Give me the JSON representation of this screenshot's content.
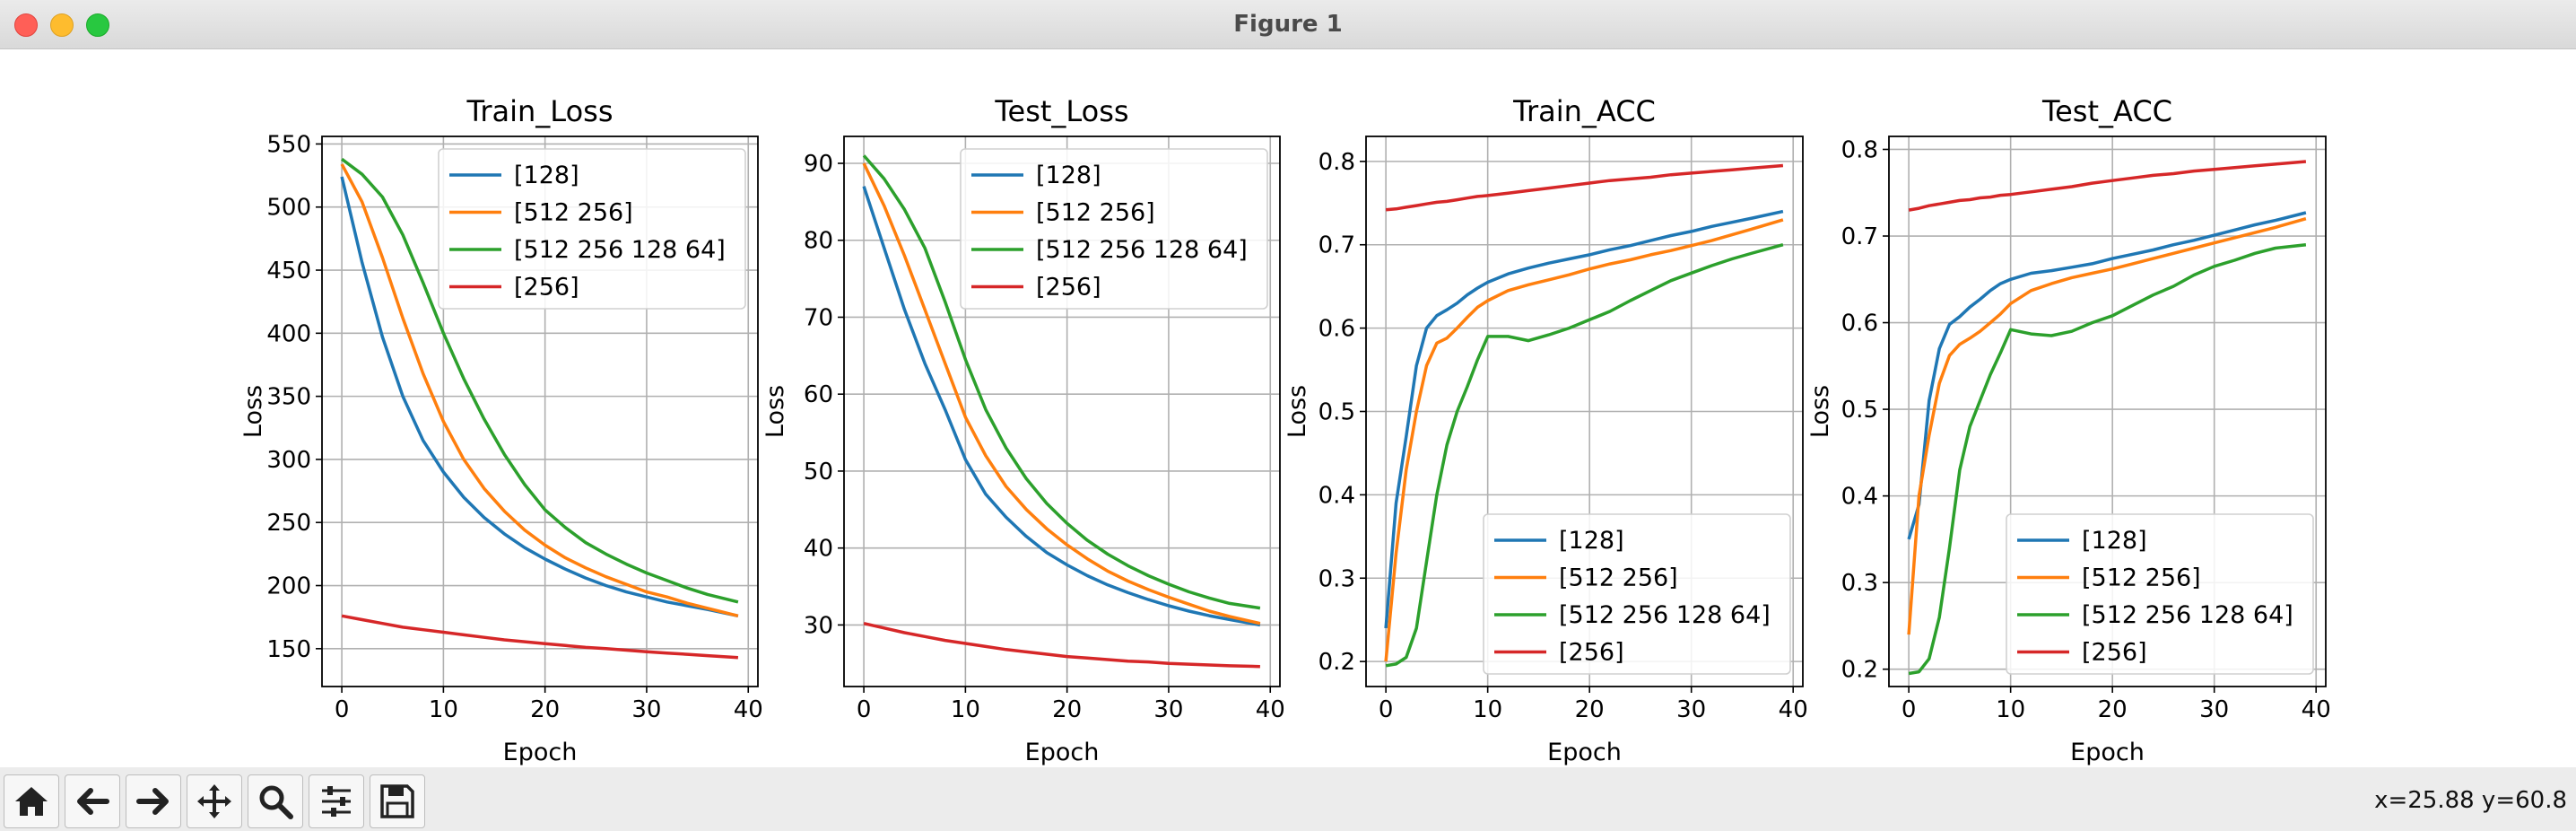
{
  "window": {
    "title": "Figure 1"
  },
  "toolbar": {
    "buttons": [
      {
        "name": "home-button",
        "icon": "home-icon"
      },
      {
        "name": "back-button",
        "icon": "arrow-left-icon"
      },
      {
        "name": "forward-button",
        "icon": "arrow-right-icon"
      },
      {
        "name": "pan-button",
        "icon": "move-icon"
      },
      {
        "name": "zoom-button",
        "icon": "magnifier-icon"
      },
      {
        "name": "configure-subplots-button",
        "icon": "sliders-icon"
      },
      {
        "name": "save-button",
        "icon": "floppy-disk-icon"
      }
    ],
    "coords": "x=25.88 y=60.8"
  },
  "colors": {
    "s128": "#1f77b4",
    "s512_256": "#ff7f0e",
    "s512_256_128_64": "#2ca02c",
    "s256": "#d62728"
  },
  "chart_data": [
    {
      "type": "line",
      "title": "Train_Loss",
      "xlabel": "Epoch",
      "ylabel": "Loss",
      "xlim": [
        -1.95,
        40.95
      ],
      "ylim": [
        120,
        556
      ],
      "xticks": [
        0,
        10,
        20,
        30,
        40
      ],
      "yticks": [
        150,
        200,
        250,
        300,
        350,
        400,
        450,
        500,
        550
      ],
      "grid": true,
      "legend": "upper right",
      "x": [
        0,
        2,
        4,
        6,
        8,
        10,
        12,
        14,
        16,
        18,
        20,
        22,
        24,
        26,
        28,
        30,
        32,
        34,
        36,
        39
      ],
      "series": [
        {
          "name": "[128]",
          "values": [
            524,
            456,
            397,
            350,
            315,
            290,
            270,
            254,
            241,
            230,
            221,
            213,
            206,
            200,
            195,
            191,
            187,
            184,
            181,
            176
          ]
        },
        {
          "name": "[512 256]",
          "values": [
            534,
            504,
            460,
            412,
            368,
            330,
            300,
            277,
            259,
            244,
            232,
            222,
            214,
            207,
            201,
            195,
            191,
            186,
            182,
            176
          ]
        },
        {
          "name": "[512 256 128 64]",
          "values": [
            538,
            526,
            508,
            478,
            440,
            400,
            364,
            332,
            304,
            280,
            260,
            246,
            234,
            225,
            217,
            210,
            204,
            198,
            193,
            187
          ]
        },
        {
          "name": "[256]",
          "values": [
            176,
            173,
            170,
            167,
            165,
            163,
            161,
            159,
            157,
            155.5,
            154,
            152.5,
            151,
            150,
            148.8,
            147.6,
            146.5,
            145.5,
            144.5,
            143
          ]
        }
      ]
    },
    {
      "type": "line",
      "title": "Test_Loss",
      "xlabel": "Epoch",
      "ylabel": "Loss",
      "xlim": [
        -1.95,
        40.95
      ],
      "ylim": [
        22,
        93.5
      ],
      "xticks": [
        0,
        10,
        20,
        30,
        40
      ],
      "yticks": [
        30,
        40,
        50,
        60,
        70,
        80,
        90
      ],
      "grid": true,
      "legend": "upper right",
      "x": [
        0,
        2,
        4,
        6,
        8,
        10,
        12,
        14,
        16,
        18,
        20,
        22,
        24,
        26,
        28,
        30,
        32,
        34,
        36,
        39
      ],
      "series": [
        {
          "name": "[128]",
          "values": [
            87,
            79,
            71,
            64,
            58,
            51.5,
            47,
            44,
            41.5,
            39.4,
            37.8,
            36.4,
            35.2,
            34.2,
            33.3,
            32.5,
            31.8,
            31.2,
            30.7,
            30
          ]
        },
        {
          "name": "[512 256]",
          "values": [
            90,
            84.5,
            78,
            71,
            64,
            57,
            52,
            48,
            45,
            42.5,
            40.4,
            38.6,
            37,
            35.7,
            34.6,
            33.6,
            32.7,
            31.8,
            31.1,
            30.2
          ]
        },
        {
          "name": "[512 256 128 64]",
          "values": [
            91,
            88,
            84,
            79,
            72,
            64.5,
            58,
            53,
            49,
            45.8,
            43.2,
            41,
            39.2,
            37.7,
            36.4,
            35.3,
            34.3,
            33.5,
            32.8,
            32.2
          ]
        },
        {
          "name": "[256]",
          "values": [
            30.2,
            29.6,
            29,
            28.5,
            28,
            27.6,
            27.2,
            26.8,
            26.5,
            26.2,
            25.9,
            25.7,
            25.5,
            25.3,
            25.2,
            25,
            24.9,
            24.8,
            24.7,
            24.6
          ]
        }
      ]
    },
    {
      "type": "line",
      "title": "Train_ACC",
      "xlabel": "Epoch",
      "ylabel": "Loss",
      "xlim": [
        -1.95,
        40.95
      ],
      "ylim": [
        0.17,
        0.83
      ],
      "xticks": [
        0,
        10,
        20,
        30,
        40
      ],
      "yticks": [
        0.2,
        0.3,
        0.4,
        0.5,
        0.6,
        0.7,
        0.8
      ],
      "grid": true,
      "legend": "lower right",
      "x": [
        0,
        1,
        2,
        3,
        4,
        5,
        6,
        7,
        8,
        9,
        10,
        12,
        14,
        16,
        18,
        20,
        22,
        24,
        26,
        28,
        30,
        32,
        34,
        36,
        39
      ],
      "series": [
        {
          "name": "[128]",
          "values": [
            0.24,
            0.39,
            0.47,
            0.555,
            0.6,
            0.615,
            0.622,
            0.63,
            0.64,
            0.648,
            0.655,
            0.665,
            0.672,
            0.678,
            0.683,
            0.688,
            0.694,
            0.699,
            0.705,
            0.711,
            0.716,
            0.722,
            0.727,
            0.732,
            0.74
          ]
        },
        {
          "name": "[512 256]",
          "values": [
            0.2,
            0.33,
            0.43,
            0.5,
            0.555,
            0.582,
            0.588,
            0.6,
            0.613,
            0.625,
            0.633,
            0.645,
            0.652,
            0.658,
            0.664,
            0.671,
            0.677,
            0.682,
            0.688,
            0.693,
            0.699,
            0.705,
            0.712,
            0.719,
            0.73
          ]
        },
        {
          "name": "[512 256 128 64]",
          "values": [
            0.195,
            0.197,
            0.205,
            0.24,
            0.32,
            0.4,
            0.46,
            0.5,
            0.53,
            0.562,
            0.59,
            0.59,
            0.585,
            0.592,
            0.6,
            0.61,
            0.62,
            0.633,
            0.645,
            0.657,
            0.666,
            0.675,
            0.683,
            0.69,
            0.7
          ]
        },
        {
          "name": "[256]",
          "values": [
            0.742,
            0.743,
            0.745,
            0.747,
            0.749,
            0.751,
            0.752,
            0.754,
            0.756,
            0.758,
            0.759,
            0.762,
            0.765,
            0.768,
            0.771,
            0.774,
            0.777,
            0.779,
            0.781,
            0.784,
            0.786,
            0.788,
            0.79,
            0.792,
            0.795
          ]
        }
      ]
    },
    {
      "type": "line",
      "title": "Test_ACC",
      "xlabel": "Epoch",
      "ylabel": "Loss",
      "xlim": [
        -1.95,
        40.95
      ],
      "ylim": [
        0.18,
        0.815
      ],
      "xticks": [
        0,
        10,
        20,
        30,
        40
      ],
      "yticks": [
        0.2,
        0.3,
        0.4,
        0.5,
        0.6,
        0.7,
        0.8
      ],
      "grid": true,
      "legend": "lower right",
      "x": [
        0,
        1,
        2,
        3,
        4,
        5,
        6,
        7,
        8,
        9,
        10,
        12,
        14,
        16,
        18,
        20,
        22,
        24,
        26,
        28,
        30,
        32,
        34,
        36,
        39
      ],
      "series": [
        {
          "name": "[128]",
          "values": [
            0.35,
            0.39,
            0.51,
            0.57,
            0.598,
            0.607,
            0.618,
            0.627,
            0.637,
            0.645,
            0.65,
            0.657,
            0.66,
            0.664,
            0.668,
            0.674,
            0.679,
            0.684,
            0.69,
            0.695,
            0.701,
            0.707,
            0.713,
            0.718,
            0.727
          ]
        },
        {
          "name": "[512 256]",
          "values": [
            0.24,
            0.4,
            0.47,
            0.53,
            0.562,
            0.575,
            0.582,
            0.59,
            0.6,
            0.61,
            0.622,
            0.637,
            0.645,
            0.652,
            0.657,
            0.662,
            0.668,
            0.674,
            0.68,
            0.686,
            0.692,
            0.698,
            0.704,
            0.71,
            0.72
          ]
        },
        {
          "name": "[512 256 128 64]",
          "values": [
            0.195,
            0.197,
            0.212,
            0.26,
            0.34,
            0.43,
            0.48,
            0.51,
            0.54,
            0.565,
            0.592,
            0.587,
            0.585,
            0.59,
            0.6,
            0.608,
            0.62,
            0.632,
            0.642,
            0.655,
            0.665,
            0.672,
            0.68,
            0.686,
            0.69
          ]
        },
        {
          "name": "[256]",
          "values": [
            0.73,
            0.732,
            0.735,
            0.737,
            0.739,
            0.741,
            0.742,
            0.744,
            0.745,
            0.747,
            0.748,
            0.751,
            0.754,
            0.757,
            0.761,
            0.764,
            0.767,
            0.77,
            0.772,
            0.775,
            0.777,
            0.779,
            0.781,
            0.783,
            0.786
          ]
        }
      ]
    }
  ]
}
